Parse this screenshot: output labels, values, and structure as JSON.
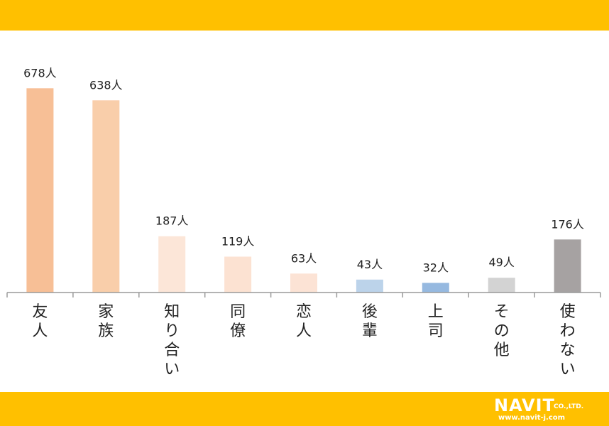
{
  "colors": {
    "band": "#ffc000",
    "axis": "#9a9a9a",
    "text": "#222222"
  },
  "logo": {
    "name": "NAVIT",
    "suffix": "CO.,LTD.",
    "url": "www.navit-j.com"
  },
  "chart_data": {
    "type": "bar",
    "categories": [
      "友人",
      "家族",
      "知り合い",
      "同僚",
      "恋人",
      "後輩",
      "上司",
      "その他",
      "使わない"
    ],
    "values": [
      678,
      638,
      187,
      119,
      63,
      43,
      32,
      49,
      176
    ],
    "value_labels": [
      "678人",
      "638人",
      "187人",
      "119人",
      "63人",
      "43人",
      "32人",
      "49人",
      "176人"
    ],
    "bar_colors": [
      "#f7bf96",
      "#f9ceaa",
      "#fce6d8",
      "#fce2d2",
      "#fce3d5",
      "#bcd3ea",
      "#96b9e0",
      "#d3d3d3",
      "#a6a2a2"
    ],
    "unit": "人",
    "ylim": [
      0,
      700
    ],
    "grid": false,
    "legend": "none"
  }
}
